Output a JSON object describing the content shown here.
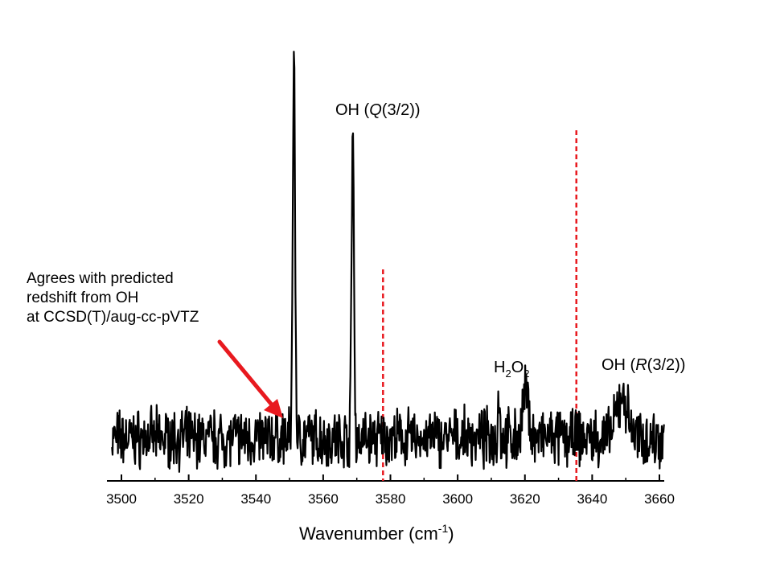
{
  "chart_data": {
    "type": "line",
    "title": "",
    "xlabel": "Wavenumber (cm",
    "xlabel_superscript": "-1",
    "xlabel_suffix": ")",
    "xlim": [
      3496,
      3662
    ],
    "x_ticks": [
      3500,
      3520,
      3540,
      3560,
      3580,
      3600,
      3620,
      3640,
      3660
    ],
    "y_axis_visible": false,
    "grid": false,
    "baseline_noise_amplitude": 0.06,
    "peaks": [
      {
        "x": 3551.3,
        "y": 1.0,
        "note": "redshifted feature"
      },
      {
        "x": 3568.8,
        "y": 0.82,
        "label": "OH (Q(3/2))"
      },
      {
        "x": 3612.2,
        "y": 0.13
      },
      {
        "x": 3620.3,
        "y": 0.12,
        "label": "H2O2"
      },
      {
        "x": 3649.0,
        "y": 0.11,
        "label": "OH (R(3/2))"
      }
    ],
    "reference_lines": [
      {
        "x": 3577.8,
        "style": "dashed",
        "color": "#e8191f"
      },
      {
        "x": 3635.3,
        "style": "dashed",
        "color": "#e8191f"
      }
    ],
    "annotations": [
      {
        "text_parts": [
          "OH (",
          "Q",
          "(3/2))"
        ],
        "italic_index": 1
      },
      {
        "text_parts": [
          "OH (",
          "R",
          "(3/2))"
        ],
        "italic_index": 1
      },
      {
        "text_parts": [
          "H",
          "2",
          "O",
          "2"
        ],
        "subscript_indices": [
          1,
          3
        ]
      }
    ],
    "note": {
      "lines": [
        "Agrees with predicted",
        "redshift from OH",
        "at CCSD(T)/aug-cc-pVTZ"
      ]
    }
  },
  "colors": {
    "trace": "#000000",
    "reference_line": "#e8191f",
    "arrow": "#e8191f"
  }
}
